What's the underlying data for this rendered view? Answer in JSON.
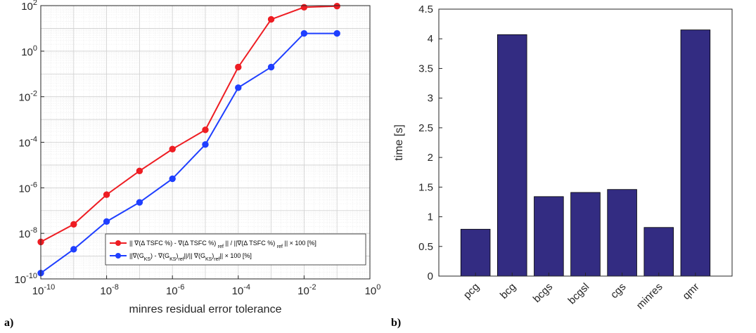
{
  "panel_labels": [
    "a)",
    "b)"
  ],
  "chart_data": [
    {
      "type": "line",
      "xscale": "log",
      "yscale": "log",
      "xlim": [
        1e-10,
        1
      ],
      "ylim": [
        1e-10,
        100
      ],
      "xlabel": "minres residual error tolerance",
      "ylabel": "",
      "grid": true,
      "legend": "bottom-right",
      "xticks": [
        {
          "value": 1e-10,
          "base": "10",
          "exp": "-10"
        },
        {
          "value": 1e-08,
          "base": "10",
          "exp": "-8"
        },
        {
          "value": 1e-06,
          "base": "10",
          "exp": "-6"
        },
        {
          "value": 0.0001,
          "base": "10",
          "exp": "-4"
        },
        {
          "value": 0.01,
          "base": "10",
          "exp": "-2"
        },
        {
          "value": 1,
          "base": "10",
          "exp": "0"
        }
      ],
      "yticks": [
        {
          "value": 1e-10,
          "base": "10",
          "exp": "-10"
        },
        {
          "value": 1e-08,
          "base": "10",
          "exp": "-8"
        },
        {
          "value": 1e-06,
          "base": "10",
          "exp": "-6"
        },
        {
          "value": 0.0001,
          "base": "10",
          "exp": "-4"
        },
        {
          "value": 0.01,
          "base": "10",
          "exp": "-2"
        },
        {
          "value": 1,
          "base": "10",
          "exp": "0"
        },
        {
          "value": 100,
          "base": "10",
          "exp": "2"
        }
      ],
      "x": [
        1e-10,
        1e-09,
        1e-08,
        1e-07,
        1e-06,
        1e-05,
        0.0001,
        0.001,
        0.01,
        0.1
      ],
      "series": [
        {
          "name": "|| ∇(Δ TSFC %) - ∇(Δ TSFC %)_ref || / ||∇(Δ TSFC %)_ref || × 100 [%]",
          "legend_parts": [
            {
              "t": "|| ∇(Δ TSFC %) - ∇(Δ TSFC %) "
            },
            {
              "t": "ref",
              "sub": true
            },
            {
              "t": " || / ||∇(Δ TSFC %) "
            },
            {
              "t": "ref",
              "sub": true
            },
            {
              "t": " || × 100 [%]"
            }
          ],
          "color": "#ee1d23",
          "values": [
            4.2e-09,
            2.5e-08,
            5e-07,
            5.5e-06,
            5e-05,
            0.00035,
            0.2,
            25,
            85,
            95
          ]
        },
        {
          "name": "||∇(G_KS) - ∇(G_KS)_ref||/|| ∇(G_KS)_ref|| × 100 [%]",
          "legend_parts": [
            {
              "t": "||∇(G"
            },
            {
              "t": "KS",
              "sub": true
            },
            {
              "t": ") -  ∇(G"
            },
            {
              "t": "KS",
              "sub": true
            },
            {
              "t": ")"
            },
            {
              "t": "ref",
              "sub": true
            },
            {
              "t": "||/|| ∇(G"
            },
            {
              "t": "KS",
              "sub": true
            },
            {
              "t": ")"
            },
            {
              "t": "ref",
              "sub": true
            },
            {
              "t": "|| × 100 [%]"
            }
          ],
          "color": "#1f3fff",
          "values": [
            1.8e-10,
            2e-09,
            3.3e-08,
            2.3e-07,
            2.5e-06,
            8e-05,
            0.025,
            0.2,
            6,
            6
          ]
        }
      ]
    },
    {
      "type": "bar",
      "categories": [
        "pcg",
        "bcg",
        "bcgs",
        "bcgsl",
        "cgs",
        "minres",
        "qmr"
      ],
      "values": [
        0.79,
        4.07,
        1.34,
        1.41,
        1.46,
        0.82,
        4.15
      ],
      "ylabel": "time [s]",
      "xlabel": "",
      "ylim": [
        0,
        4.5
      ],
      "yticks": [
        "0",
        "0.5",
        "1",
        "1.5",
        "2",
        "2.5",
        "3",
        "3.5",
        "4",
        "4.5"
      ],
      "bar_color": "#332c82",
      "grid": false
    }
  ]
}
